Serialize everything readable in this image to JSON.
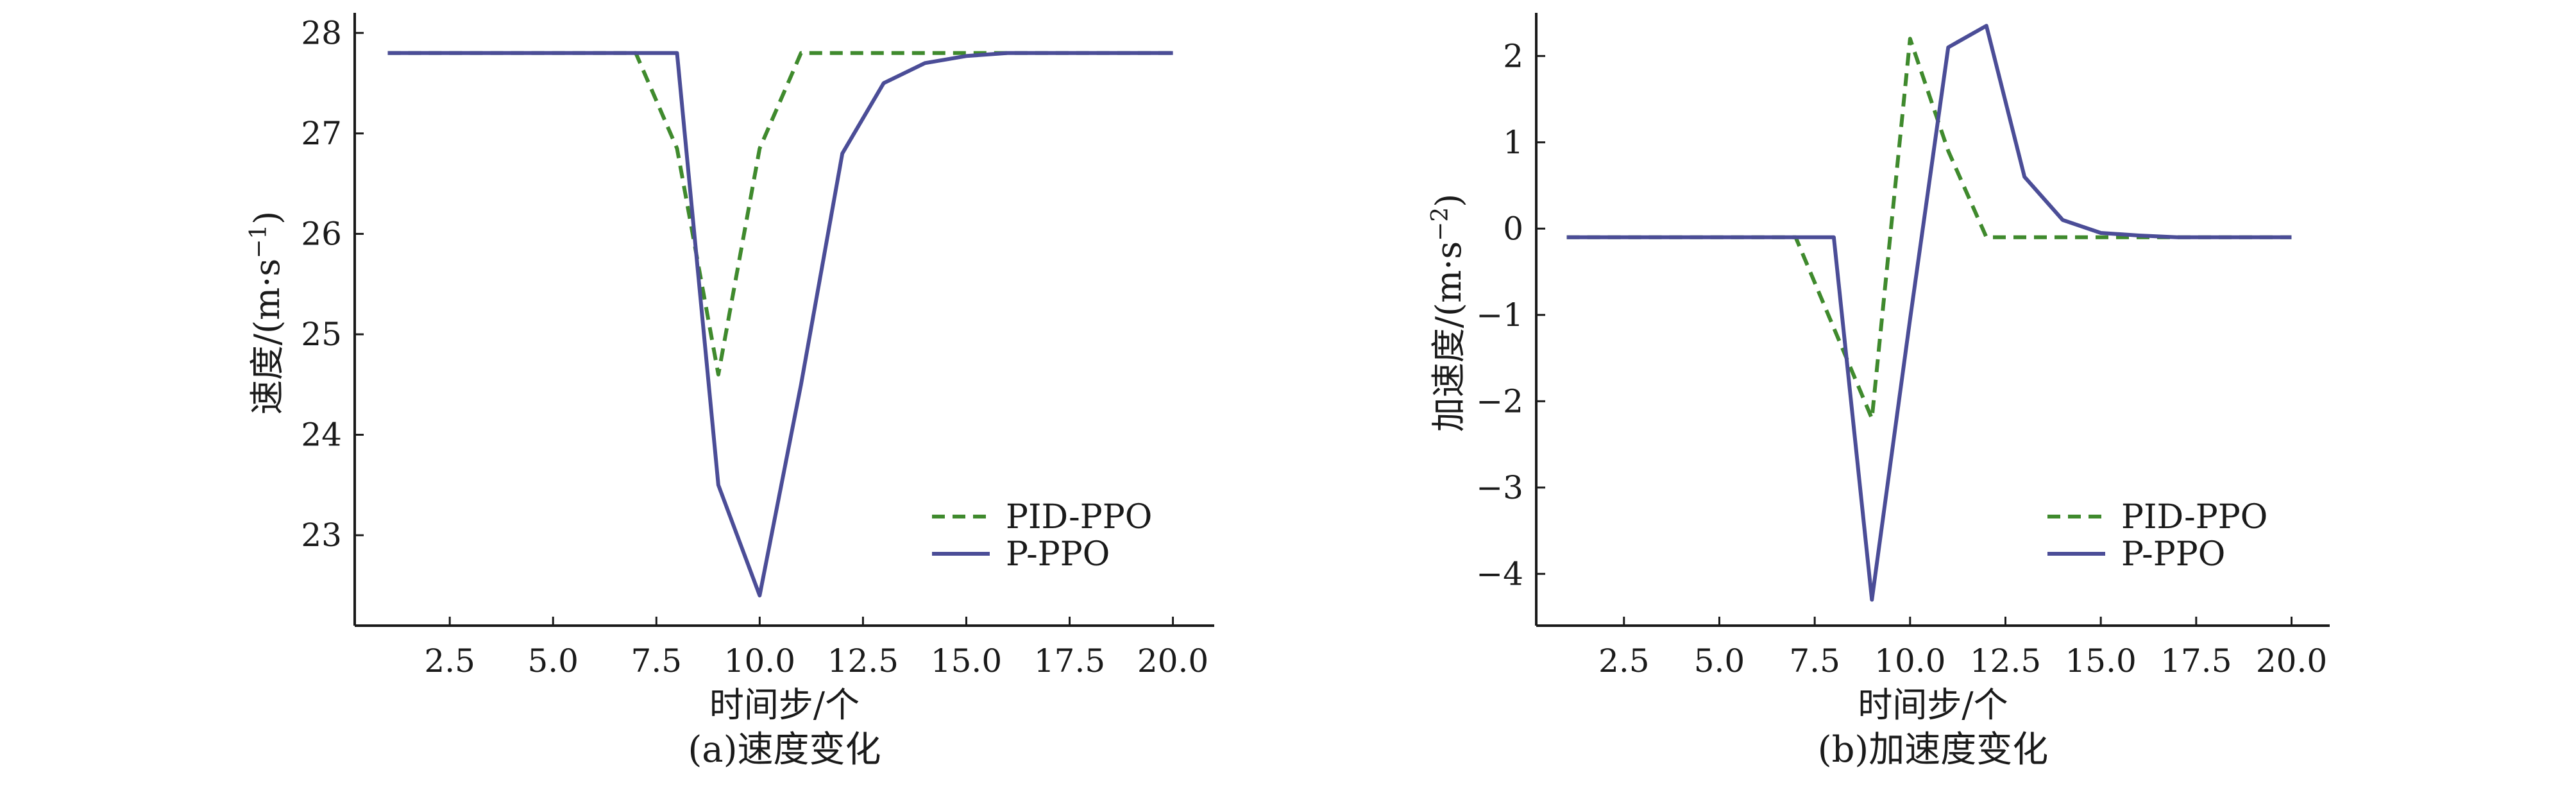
{
  "chart_data": [
    {
      "type": "line",
      "caption": "(a)速度变化",
      "xlabel": "时间步/个",
      "ylabel": "速度/(m·s",
      "ylabel_sup": "−1",
      "ylabel_close": ")",
      "xlim": [
        0.2,
        21.0
      ],
      "ylim": [
        22.1,
        28.2
      ],
      "xticks": [
        2.5,
        5.0,
        7.5,
        10.0,
        12.5,
        15.0,
        17.5,
        20.0
      ],
      "xtick_labels": [
        "2.5",
        "5.0",
        "7.5",
        "10.0",
        "12.5",
        "15.0",
        "17.5",
        "20.0"
      ],
      "yticks": [
        23,
        24,
        25,
        26,
        27,
        28
      ],
      "ytick_labels": [
        "23",
        "24",
        "25",
        "26",
        "27",
        "28"
      ],
      "legend_position": "lower-right",
      "series": [
        {
          "name": "PID-PPO",
          "color": "#3f8a2d",
          "dash": "dashed",
          "x": [
            1,
            2,
            3,
            4,
            5,
            6,
            7,
            8,
            9,
            10,
            11,
            12,
            13,
            14,
            15,
            16,
            17,
            18,
            19,
            20
          ],
          "y": [
            27.8,
            27.8,
            27.8,
            27.8,
            27.8,
            27.8,
            27.8,
            26.85,
            24.6,
            26.85,
            27.8,
            27.8,
            27.8,
            27.8,
            27.8,
            27.8,
            27.8,
            27.8,
            27.8,
            27.8
          ]
        },
        {
          "name": "P-PPO",
          "color": "#4b4d97",
          "dash": "solid",
          "x": [
            1,
            2,
            3,
            4,
            5,
            6,
            7,
            8,
            9,
            10,
            11,
            12,
            13,
            14,
            15,
            16,
            17,
            18,
            19,
            20
          ],
          "y": [
            27.8,
            27.8,
            27.8,
            27.8,
            27.8,
            27.8,
            27.8,
            27.8,
            23.5,
            22.4,
            24.5,
            26.8,
            27.5,
            27.7,
            27.77,
            27.8,
            27.8,
            27.8,
            27.8,
            27.8
          ]
        }
      ]
    },
    {
      "type": "line",
      "caption": "(b)加速度变化",
      "xlabel": "时间步/个",
      "ylabel": "加速度/(m·s",
      "ylabel_sup": "−2",
      "ylabel_close": ")",
      "xlim": [
        0.2,
        21.0
      ],
      "ylim": [
        -4.6,
        2.5
      ],
      "xticks": [
        2.5,
        5.0,
        7.5,
        10.0,
        12.5,
        15.0,
        17.5,
        20.0
      ],
      "xtick_labels": [
        "2.5",
        "5.0",
        "7.5",
        "10.0",
        "12.5",
        "15.0",
        "17.5",
        "20.0"
      ],
      "yticks": [
        -4,
        -3,
        -2,
        -1,
        0,
        1,
        2
      ],
      "ytick_labels": [
        "−4",
        "−3",
        "−2",
        "−1",
        "0",
        "1",
        "2"
      ],
      "legend_position": "lower-right",
      "series": [
        {
          "name": "PID-PPO",
          "color": "#3f8a2d",
          "dash": "dashed",
          "x": [
            1,
            2,
            3,
            4,
            5,
            6,
            7,
            8,
            9,
            10,
            11,
            12,
            13,
            14,
            15,
            16,
            17,
            18,
            19,
            20
          ],
          "y": [
            -0.1,
            -0.1,
            -0.1,
            -0.1,
            -0.1,
            -0.1,
            -0.1,
            -1.15,
            -2.2,
            2.2,
            0.9,
            -0.1,
            -0.1,
            -0.1,
            -0.1,
            -0.1,
            -0.1,
            -0.1,
            -0.1,
            -0.1
          ]
        },
        {
          "name": "P-PPO",
          "color": "#4b4d97",
          "dash": "solid",
          "x": [
            1,
            2,
            3,
            4,
            5,
            6,
            7,
            8,
            9,
            10,
            11,
            12,
            13,
            14,
            15,
            16,
            17,
            18,
            19,
            20
          ],
          "y": [
            -0.1,
            -0.1,
            -0.1,
            -0.1,
            -0.1,
            -0.1,
            -0.1,
            -0.1,
            -4.3,
            -1.05,
            2.1,
            2.35,
            0.6,
            0.1,
            -0.05,
            -0.08,
            -0.1,
            -0.1,
            -0.1,
            -0.1
          ]
        }
      ]
    }
  ]
}
